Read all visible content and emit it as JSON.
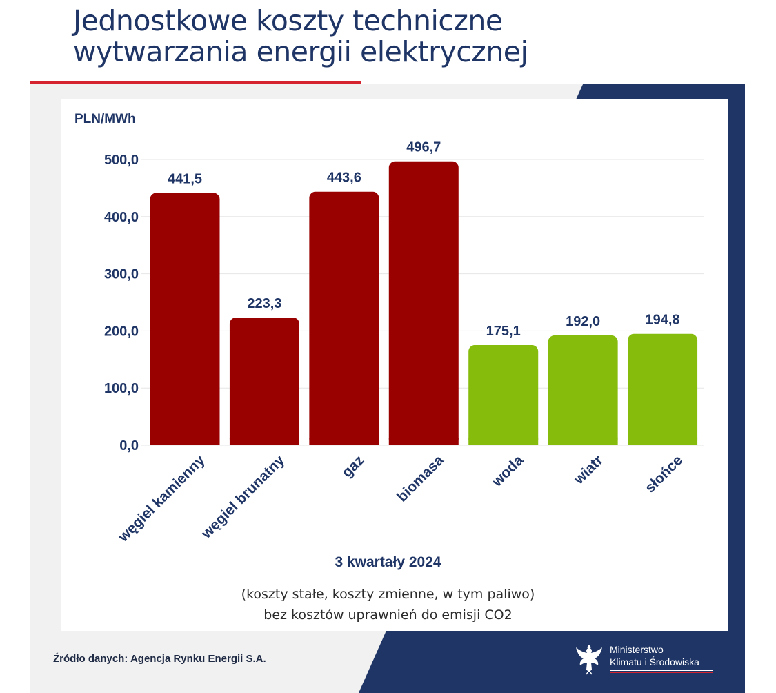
{
  "header": {
    "title_line1": "Jednostkowe koszty techniczne",
    "title_line2": "wytwarzania energii elektrycznej"
  },
  "chart_data": {
    "type": "bar",
    "title": "Jednostkowe koszty techniczne wytwarzania energii elektrycznej",
    "ylabel": "PLN/MWh",
    "xlabel": "",
    "ylim": [
      0,
      500
    ],
    "yticks": [
      "0,0",
      "100,0",
      "200,0",
      "300,0",
      "400,0",
      "500,0"
    ],
    "grid": "horizontal",
    "categories": [
      "węgiel kamienny",
      "węgiel brunatny",
      "gaz",
      "biomasa",
      "woda",
      "wiatr",
      "słońce"
    ],
    "values": [
      441.5,
      223.3,
      443.6,
      496.7,
      175.1,
      192.0,
      194.8
    ],
    "value_labels": [
      "441,5",
      "223,3",
      "443,6",
      "496,7",
      "175,1",
      "192,0",
      "194,8"
    ],
    "colors": [
      "#990000",
      "#990000",
      "#990000",
      "#990000",
      "#86bc0c",
      "#86bc0c",
      "#86bc0c"
    ]
  },
  "footer": {
    "period": "3 kwartały 2024",
    "note_line1": "(koszty stałe, koszty zmienne, w tym paliwo)",
    "note_line2": "bez kosztów uprawnień do emisji CO2",
    "source": "Źródło danych: Agencja Rynku Energii S.A.",
    "ministry_line1": "Ministerstwo",
    "ministry_line2": "Klimatu i Środowiska"
  },
  "colors": {
    "navy": "#1f3566",
    "accent_red": "#d5232f",
    "fossil_bar": "#990000",
    "renewable_bar": "#86bc0c"
  }
}
